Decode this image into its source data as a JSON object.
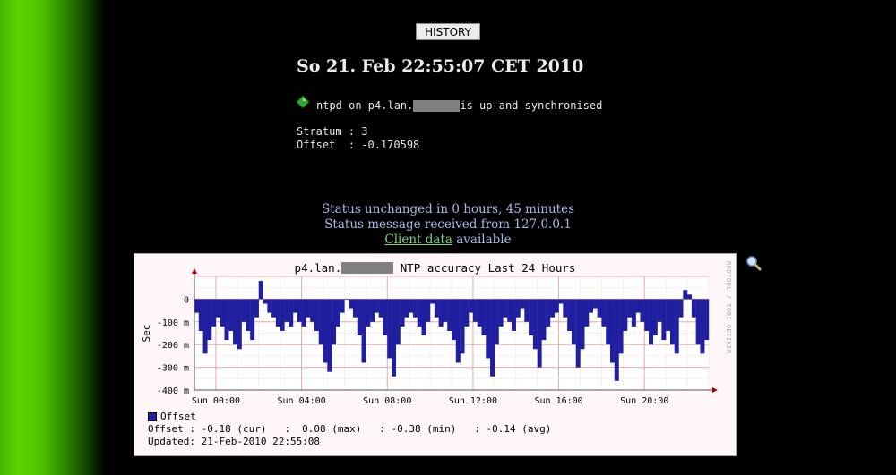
{
  "toolbar": {
    "history_label": "HISTORY"
  },
  "page": {
    "datetime": "So 21. Feb 22:55:07 CET 2010",
    "status_prefix": "ntpd on p4.lan.",
    "status_suffix": " is up and synchronised",
    "stratum_line": "Stratum : 3",
    "offset_line": "Offset  : -0.170598"
  },
  "status_block": {
    "unchanged": "Status unchanged in 0 hours, 45 minutes",
    "received": "Status message received from 127.0.0.1",
    "client_link": "Client data",
    "available": " available"
  },
  "graph": {
    "title_prefix": "p4.lan.",
    "title_suffix": " NTP accuracy Last 24 Hours",
    "side_text": "RRDTOOL / TOBI OETIKER",
    "legend_name": "Offset",
    "stats_line": "Offset : -0.18 (cur)   :  0.08 (max)   : -0.38 (min)   : -0.14 (avg)",
    "updated_line": "Updated: 21-Feb-2010 22:55:08",
    "bar_color": "#1f1fa0"
  },
  "icons": {
    "status": "green-diamond-icon",
    "zoom": "magnifier-icon"
  },
  "chart_data": {
    "type": "area",
    "ylabel": "Sec",
    "ylim": [
      -0.4,
      0.1
    ],
    "yticks": [
      "0",
      "-100 m",
      "-200 m",
      "-300 m",
      "-400 m"
    ],
    "xticks": [
      "Sun 00:00",
      "Sun 04:00",
      "Sun 08:00",
      "Sun 12:00",
      "Sun 16:00",
      "Sun 20:00"
    ],
    "x_hours_start": -1,
    "x_hours_end": 23,
    "series": [
      {
        "name": "Offset",
        "x": [
          -1,
          -0.8,
          -0.6,
          -0.4,
          -0.2,
          0,
          0.2,
          0.4,
          0.6,
          0.8,
          1,
          1.2,
          1.4,
          1.6,
          1.8,
          2,
          2.2,
          2.4,
          2.6,
          2.8,
          3,
          3.2,
          3.4,
          3.6,
          3.8,
          4,
          4.2,
          4.4,
          4.6,
          4.8,
          5,
          5.2,
          5.4,
          5.6,
          5.8,
          6,
          6.2,
          6.4,
          6.6,
          6.8,
          7,
          7.2,
          7.4,
          7.6,
          7.8,
          8,
          8.2,
          8.4,
          8.6,
          8.8,
          9,
          9.2,
          9.4,
          9.6,
          9.8,
          10,
          10.2,
          10.4,
          10.6,
          10.8,
          11,
          11.2,
          11.4,
          11.6,
          11.8,
          12,
          12.2,
          12.4,
          12.6,
          12.8,
          13,
          13.2,
          13.4,
          13.6,
          13.8,
          14,
          14.2,
          14.4,
          14.6,
          14.8,
          15,
          15.2,
          15.4,
          15.6,
          15.8,
          16,
          16.2,
          16.4,
          16.6,
          16.8,
          17,
          17.2,
          17.4,
          17.6,
          17.8,
          18,
          18.2,
          18.4,
          18.6,
          18.8,
          19,
          19.2,
          19.4,
          19.6,
          19.8,
          20,
          20.2,
          20.4,
          20.6,
          20.8,
          21,
          21.2,
          21.4,
          21.6,
          21.8,
          22,
          22.2,
          22.4,
          22.6,
          22.8
        ],
        "values": [
          -0.06,
          -0.14,
          -0.24,
          -0.18,
          -0.12,
          -0.08,
          -0.12,
          -0.18,
          -0.14,
          -0.2,
          -0.22,
          -0.1,
          -0.14,
          -0.18,
          -0.08,
          0.08,
          -0.02,
          -0.06,
          -0.08,
          -0.12,
          -0.14,
          -0.1,
          -0.12,
          -0.06,
          -0.1,
          -0.12,
          -0.08,
          -0.1,
          -0.14,
          -0.2,
          -0.28,
          -0.32,
          -0.2,
          -0.12,
          -0.06,
          0.0,
          -0.04,
          -0.08,
          -0.16,
          -0.28,
          -0.12,
          -0.1,
          -0.06,
          -0.08,
          -0.16,
          -0.26,
          -0.34,
          -0.2,
          -0.12,
          -0.08,
          -0.06,
          -0.08,
          -0.12,
          -0.16,
          -0.1,
          -0.02,
          -0.08,
          -0.12,
          -0.1,
          -0.14,
          -0.18,
          -0.28,
          -0.24,
          -0.12,
          -0.06,
          -0.1,
          -0.12,
          -0.16,
          -0.26,
          -0.34,
          -0.2,
          -0.12,
          -0.08,
          -0.1,
          -0.14,
          -0.08,
          -0.04,
          -0.1,
          -0.16,
          -0.22,
          -0.3,
          -0.18,
          -0.12,
          -0.08,
          -0.06,
          -0.02,
          -0.08,
          -0.14,
          -0.2,
          -0.3,
          -0.22,
          -0.12,
          -0.06,
          -0.04,
          -0.08,
          -0.12,
          -0.2,
          -0.28,
          -0.36,
          -0.24,
          -0.14,
          -0.08,
          -0.12,
          -0.06,
          -0.1,
          -0.14,
          -0.2,
          -0.16,
          -0.1,
          -0.18,
          -0.14,
          -0.2,
          -0.24,
          -0.08,
          0.04,
          0.02,
          -0.08,
          -0.2,
          -0.24,
          -0.18
        ]
      }
    ],
    "legend": [
      "Offset"
    ],
    "grid": true
  }
}
